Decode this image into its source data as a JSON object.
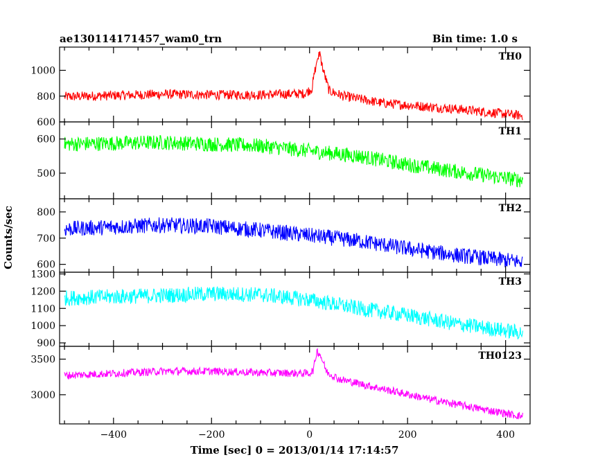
{
  "header": {
    "title": "ae130114171457_wam0_trn",
    "bin_time": "Bin time: 1.0 s"
  },
  "chart_data": [
    {
      "type": "line",
      "name": "TH0",
      "color": "#ff0000",
      "x_range": [
        -510,
        450
      ],
      "ylim": [
        600,
        1180
      ],
      "y_ticks": [
        600,
        800,
        1000
      ],
      "base": [
        [
          -500,
          795
        ],
        [
          -300,
          815
        ],
        [
          -200,
          810
        ],
        [
          -100,
          810
        ],
        [
          -10,
          820
        ],
        [
          5,
          860
        ],
        [
          12,
          1020
        ],
        [
          20,
          1130
        ],
        [
          28,
          1000
        ],
        [
          40,
          840
        ],
        [
          70,
          800
        ],
        [
          150,
          745
        ],
        [
          300,
          700
        ],
        [
          430,
          650
        ]
      ],
      "noise": 38,
      "spike": [
        600,
        680
      ]
    },
    {
      "type": "line",
      "name": "TH1",
      "color": "#00ff00",
      "x_range": [
        -510,
        450
      ],
      "ylim": [
        425,
        650
      ],
      "y_ticks": [
        500,
        600
      ],
      "base": [
        [
          -500,
          585
        ],
        [
          -300,
          590
        ],
        [
          -200,
          585
        ],
        [
          -100,
          580
        ],
        [
          0,
          565
        ],
        [
          100,
          550
        ],
        [
          200,
          525
        ],
        [
          300,
          505
        ],
        [
          430,
          480
        ]
      ],
      "noise": 22
    },
    {
      "type": "line",
      "name": "TH2",
      "color": "#0000ff",
      "x_range": [
        -510,
        450
      ],
      "ylim": [
        570,
        850
      ],
      "y_ticks": [
        600,
        700,
        800
      ],
      "base": [
        [
          -500,
          735
        ],
        [
          -300,
          750
        ],
        [
          -200,
          745
        ],
        [
          -100,
          730
        ],
        [
          0,
          710
        ],
        [
          100,
          690
        ],
        [
          200,
          660
        ],
        [
          300,
          635
        ],
        [
          430,
          610
        ]
      ],
      "noise": 30
    },
    {
      "type": "line",
      "name": "TH3",
      "color": "#00ffff",
      "x_range": [
        -510,
        450
      ],
      "ylim": [
        880,
        1310
      ],
      "y_ticks": [
        900,
        1000,
        1100,
        1200,
        1300
      ],
      "base": [
        [
          -500,
          1160
        ],
        [
          -300,
          1175
        ],
        [
          -200,
          1185
        ],
        [
          -100,
          1180
        ],
        [
          0,
          1150
        ],
        [
          100,
          1100
        ],
        [
          200,
          1060
        ],
        [
          300,
          1010
        ],
        [
          430,
          960
        ]
      ],
      "noise": 45
    },
    {
      "type": "line",
      "name": "TH0123",
      "color": "#ff00ff",
      "x_range": [
        -510,
        450
      ],
      "ylim": [
        2590,
        3680
      ],
      "y_ticks": [
        3000,
        3500
      ],
      "base": [
        [
          -500,
          3270
        ],
        [
          -300,
          3330
        ],
        [
          -200,
          3330
        ],
        [
          -100,
          3310
        ],
        [
          0,
          3300
        ],
        [
          8,
          3350
        ],
        [
          15,
          3620
        ],
        [
          22,
          3560
        ],
        [
          35,
          3320
        ],
        [
          60,
          3220
        ],
        [
          150,
          3080
        ],
        [
          250,
          2930
        ],
        [
          350,
          2800
        ],
        [
          430,
          2700
        ]
      ],
      "noise": 55
    }
  ],
  "x_axis": {
    "ticks": [
      -400,
      -200,
      0,
      200,
      400
    ],
    "label": "Time [sec] 0 = 2013/01/14 17:14:57"
  },
  "y_axis": {
    "label": "Counts/sec"
  }
}
